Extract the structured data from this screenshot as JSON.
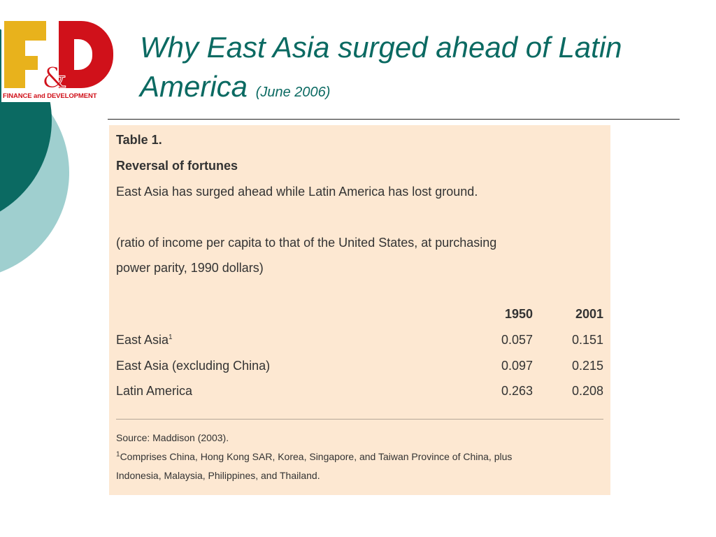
{
  "logo": {
    "letters": "F&D",
    "caption": "FINANCE and DEVELOPMENT"
  },
  "title": {
    "main_line1": "Why East Asia surged ahead of Latin",
    "main_line2": "America",
    "date": "(June 2006)"
  },
  "table": {
    "label": "Table 1.",
    "heading": "Reversal of fortunes",
    "subtitle": "East Asia has surged ahead while Latin America has lost ground.",
    "note_line1": "(ratio of income per capita to that of the United States, at purchasing",
    "note_line2": "power parity, 1990 dollars)",
    "columns": [
      "1950",
      "2001"
    ],
    "rows": [
      {
        "label": "East Asia",
        "footnote_mark": "1",
        "values": [
          "0.057",
          "0.151"
        ]
      },
      {
        "label": "East Asia (excluding China)",
        "footnote_mark": "",
        "values": [
          "0.097",
          "0.215"
        ]
      },
      {
        "label": "Latin America",
        "footnote_mark": "",
        "values": [
          "0.263",
          "0.208"
        ]
      }
    ],
    "source": "Source: Maddison (2003).",
    "footnote_mark": "1",
    "footnote_line1": "Comprises China, Hong Kong SAR, Korea, Singapore, and Taiwan Province of China, plus",
    "footnote_line2": "Indonesia, Malaysia, Philippines, and Thailand."
  },
  "colors": {
    "teal_dark": "#0b6a62",
    "teal_light": "#9fcfcf",
    "panel_bg": "#fde8d2",
    "logo_yellow": "#e8b21c",
    "logo_red": "#d0111a"
  }
}
